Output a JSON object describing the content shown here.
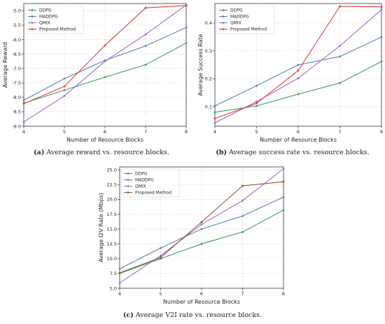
{
  "chart_data": [
    {
      "type": "line",
      "x": [
        4,
        5,
        6,
        7,
        8
      ],
      "xlabel": "Number of Resource Blocks",
      "ylabel": "Average Reward",
      "xlim": [
        4,
        8
      ],
      "ylim": [
        -9.0,
        -4.75
      ],
      "xticks": [
        4,
        5,
        6,
        7,
        8
      ],
      "yticks": [
        -9.0,
        -8.5,
        -8.0,
        -7.5,
        -7.0,
        -6.5,
        -6.0,
        -5.5,
        -5.0
      ],
      "ytick_labels": [
        "-9.0",
        "-8.5",
        "-8.0",
        "-7.5",
        "-7.0",
        "-6.5",
        "-6.0",
        "-5.5",
        "-5.0"
      ],
      "grid": true,
      "legend_position": "top-left",
      "series": [
        {
          "name": "DDPG",
          "color": "#3a9a6e",
          "values": [
            -8.2,
            -7.75,
            -7.3,
            -6.87,
            -6.12
          ]
        },
        {
          "name": "MADDPG",
          "color": "#5a7fb0",
          "values": [
            -8.1,
            -7.35,
            -6.72,
            -6.22,
            -5.58
          ]
        },
        {
          "name": "QMIX",
          "color": "#a466c6",
          "values": [
            -8.85,
            -7.95,
            -6.75,
            -5.82,
            -4.8
          ]
        },
        {
          "name": "Proposed Method",
          "color": "#e03a3a",
          "values": [
            -8.22,
            -7.62,
            -6.2,
            -4.9,
            -4.82
          ]
        }
      ],
      "caption_label": "(a)",
      "caption_text": "Average reward vs. resource blocks."
    },
    {
      "type": "line",
      "x": [
        4,
        5,
        6,
        7,
        8
      ],
      "xlabel": "Number of Resource Blocks",
      "ylabel": "Average Success Rate",
      "xlim": [
        4,
        8
      ],
      "ylim": [
        0.03,
        0.47
      ],
      "xticks": [
        4,
        5,
        6,
        7,
        8
      ],
      "yticks": [
        0.1,
        0.2,
        0.3,
        0.4
      ],
      "ytick_labels": [
        "0.1",
        "0.2",
        "0.3",
        "0.4"
      ],
      "grid": true,
      "legend_position": "top-left",
      "series": [
        {
          "name": "DDPG",
          "color": "#3a9a6e",
          "values": [
            0.08,
            0.103,
            0.145,
            0.185,
            0.262
          ]
        },
        {
          "name": "MADDPG",
          "color": "#5a7fb0",
          "values": [
            0.103,
            0.175,
            0.25,
            0.28,
            0.35
          ]
        },
        {
          "name": "QMIX",
          "color": "#a466c6",
          "values": [
            0.042,
            0.118,
            0.202,
            0.318,
            0.448
          ]
        },
        {
          "name": "Proposed Method",
          "color": "#e03a3a",
          "values": [
            0.058,
            0.112,
            0.23,
            0.46,
            0.458
          ]
        }
      ],
      "caption_label": "(b)",
      "caption_text": "Average success rate vs. resource blocks."
    },
    {
      "type": "line",
      "x": [
        4,
        5,
        6,
        7,
        8
      ],
      "xlabel": "Number of Resource Blocks",
      "ylabel": "Average I2V Rate (Mbps)",
      "xlim": [
        4,
        8
      ],
      "ylim": [
        5.0,
        25.5
      ],
      "xticks": [
        4,
        5,
        6,
        7,
        8
      ],
      "yticks": [
        5.0,
        7.5,
        10.0,
        12.5,
        15.0,
        17.5,
        20.0,
        22.5,
        25.0
      ],
      "ytick_labels": [
        "5.0",
        "7.5",
        "10.0",
        "12.5",
        "15.0",
        "17.5",
        "20.0",
        "22.5",
        "25.0"
      ],
      "grid": true,
      "legend_position": "top-left",
      "series": [
        {
          "name": "DDPG",
          "color": "#3a9a6e",
          "values": [
            7.5,
            10.0,
            12.5,
            14.5,
            18.2
          ]
        },
        {
          "name": "MADDPG",
          "color": "#5a7fb0",
          "values": [
            8.3,
            11.8,
            15.0,
            17.2,
            20.4
          ]
        },
        {
          "name": "QMIX",
          "color": "#a466c6",
          "values": [
            5.9,
            10.5,
            15.8,
            19.8,
            25.2
          ]
        },
        {
          "name": "Proposed Method",
          "color": "#8a5a2a",
          "values": [
            7.6,
            10.2,
            16.2,
            22.3,
            23.0
          ]
        }
      ],
      "caption_label": "(c)",
      "caption_text": "Average V2I rate vs. resource blocks."
    }
  ]
}
